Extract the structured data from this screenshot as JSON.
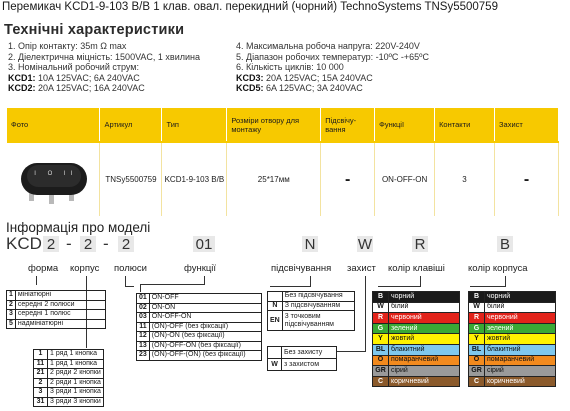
{
  "title": "Перемикач KCD1-9-103 B/B 1 клав. овал.  перекидний (чорний) TechnoSystems TNSy5500759",
  "specs_heading": "Технічні характеристики",
  "specs": {
    "left": [
      "1. Опір контакту: 35m Ω  max",
      "2. Діелектрична міцність:  1500VAC, 1 хвилина",
      "3. Номінальний робочий струм:"
    ],
    "left_models": [
      {
        "name": "KCD1:",
        "value": " 10A 125VAC; 6A 240VAC"
      },
      {
        "name": "KCD2:",
        "value": " 20A 125VAC; 16A 240VAC"
      }
    ],
    "right": [
      "4. Максимальна робоча напруга: 220V-240V",
      "5. Діапазон робочих температур: -10ºC -+65ºC",
      "6. Кількість циклів: 10 000"
    ],
    "right_models": [
      {
        "name": "KCD3:",
        "value": " 20A 125VAC; 15A 240VAC"
      },
      {
        "name": "KCD5:",
        "value": " 6A 125VAC; 3A 240VAC"
      }
    ]
  },
  "table": {
    "headers": [
      "Фото",
      "Артикул",
      "Тип",
      "Розміри отвору для монтажу",
      "Підсвічу-вання",
      "Функції",
      "Контакти",
      "Захист"
    ],
    "row": [
      "",
      "TNSy5500759",
      "KCD1-9-103 B/B",
      "25*17мм",
      "-",
      "ON-OFF-ON",
      "3",
      "-"
    ]
  },
  "info_heading": "Інформація про моделі",
  "code": {
    "prefix": "KCD",
    "seg1": "2",
    "seg2": "2",
    "seg3": "2",
    "seg4": "01",
    "seg5": "N",
    "seg6": "W",
    "seg7": "R",
    "seg8": "B",
    "dash": "-"
  },
  "labels": {
    "forma": "форма",
    "korpus": "корпус",
    "polyusy": "полюси",
    "funktsii": "функції",
    "pidsvich": "підсвічування",
    "zakhyst": "захист",
    "kolir_klav": "колір клавіші",
    "kolir_korp": "колір корпуса"
  },
  "forma": [
    {
      "k": "1",
      "v": "мініатюрні"
    },
    {
      "k": "2",
      "v": "середні 2 полюси"
    },
    {
      "k": "3",
      "v": "середні 1 полюс"
    },
    {
      "k": "5",
      "v": "надмініатюрні"
    }
  ],
  "funktsii": [
    {
      "k": "01",
      "v": "ON-OFF"
    },
    {
      "k": "02",
      "v": "ON-ON"
    },
    {
      "k": "03",
      "v": "ON-OFF-ON"
    },
    {
      "k": "11",
      "v": "(ON)-OFF (без фіксації)"
    },
    {
      "k": "12",
      "v": "(ON)-ON (без фіксації)"
    },
    {
      "k": "13",
      "v": "(ON)-OFF-ON (без фіксації)"
    },
    {
      "k": "23",
      "v": "(ON)-OFF-(ON) (без фіксації)"
    }
  ],
  "pidsvich": [
    {
      "k": "",
      "v": "Без підсвічування"
    },
    {
      "k": "N",
      "v": "З підсвічуванням"
    },
    {
      "k": "EN",
      "v": "3 точковим підсвічуванням"
    }
  ],
  "zakhyst": [
    {
      "k": "",
      "v": "Без захисту"
    },
    {
      "k": "W",
      "v": "з захистом"
    }
  ],
  "knopky": [
    {
      "k": "1",
      "v": "1 ряд 1 кнопка"
    },
    {
      "k": "11",
      "v": "1 ряд 1 кнопка"
    },
    {
      "k": "21",
      "v": "2 ряди 2 кнопки"
    },
    {
      "k": "2",
      "v": "2 ряди 1 кнопка"
    },
    {
      "k": "3",
      "v": "3 ряди 1 кнопка"
    },
    {
      "k": "31",
      "v": "3 ряди 3 кнопки"
    }
  ],
  "colors": [
    {
      "k": "B",
      "v": "чорний",
      "c": "#1a1a1a",
      "t": "#ffffff"
    },
    {
      "k": "W",
      "v": "білий",
      "c": "#ffffff",
      "t": "#111111"
    },
    {
      "k": "R",
      "v": "червоний",
      "c": "#e2231a",
      "t": "#ffffff"
    },
    {
      "k": "G",
      "v": "зелений",
      "c": "#3aa935",
      "t": "#ffffff"
    },
    {
      "k": "Y",
      "v": "жовтий",
      "c": "#fff200",
      "t": "#111111"
    },
    {
      "k": "BL",
      "v": "блакитний",
      "c": "#7fc8ee",
      "t": "#111111"
    },
    {
      "k": "O",
      "v": "помаранчевий",
      "c": "#f28a1e",
      "t": "#111111"
    },
    {
      "k": "GR",
      "v": "сірий",
      "c": "#9a9a9a",
      "t": "#111111"
    },
    {
      "k": "C",
      "v": "коричневий",
      "c": "#8b5a2b",
      "t": "#ffffff"
    }
  ]
}
